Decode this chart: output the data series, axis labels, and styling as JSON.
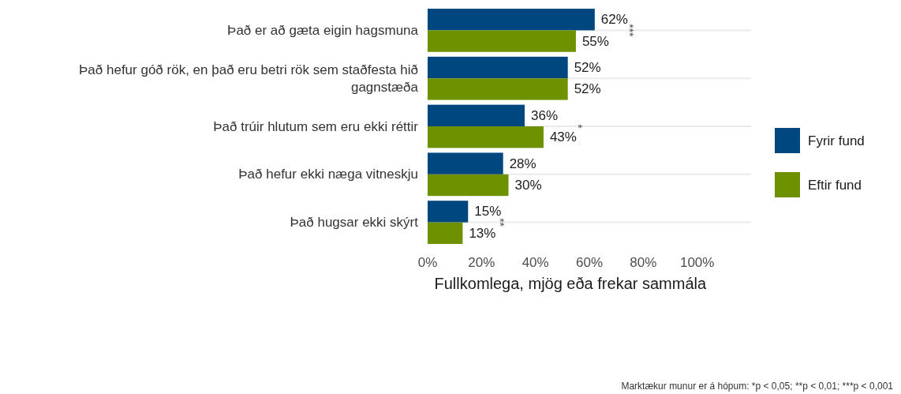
{
  "chart_data": {
    "type": "bar",
    "orientation": "horizontal",
    "xlabel": "Fullkomlega, mjög eða frekar sammála",
    "categories": [
      "Það er að gæta eigin hagsmuna",
      "Það hefur góð rök, en það eru betri rök sem staðfesta hið gagnstæða",
      "Það trúir hlutum sem eru ekki réttir",
      "Það hefur ekki næga vitneskju",
      "Það hugsar ekki skýrt"
    ],
    "series": [
      {
        "name": "Fyrir fund",
        "color": "#00467f",
        "values": [
          62,
          52,
          36,
          28,
          15
        ],
        "value_labels": [
          "62%",
          "52%",
          "36%",
          "28%",
          "15%"
        ]
      },
      {
        "name": "Eftir fund",
        "color": "#6e9100",
        "values": [
          55,
          52,
          43,
          30,
          13
        ],
        "value_labels": [
          "55%",
          "52%",
          "43%",
          "30%",
          "13%"
        ]
      }
    ],
    "xlim": [
      0,
      120
    ],
    "xticks": [
      {
        "value": 0,
        "label": "0%"
      },
      {
        "value": 20,
        "label": "20%"
      },
      {
        "value": 40,
        "label": "40%"
      },
      {
        "value": 60,
        "label": "60%"
      },
      {
        "value": 80,
        "label": "80%"
      },
      {
        "value": 100,
        "label": "100%"
      }
    ],
    "grid": "y",
    "legend": "right",
    "annotations": [
      "***",
      "*",
      "**",
      "Marktækur munur er á hópum: *p < 0,05; **p < 0,01; ***p < 0,001"
    ]
  }
}
